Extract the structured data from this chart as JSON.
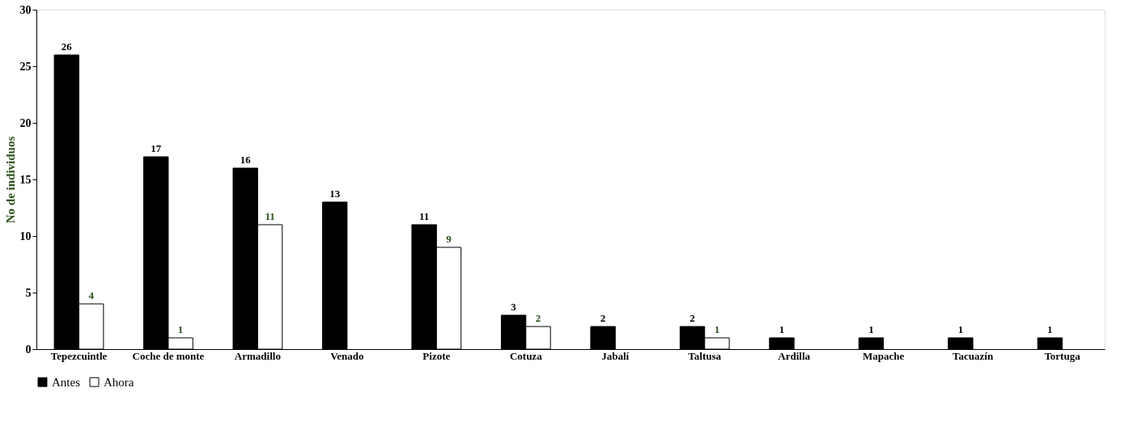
{
  "chart_data": {
    "type": "bar",
    "ylabel": "No de individuos",
    "categories": [
      "Tepezcuintle",
      "Coche de monte",
      "Armadillo",
      "Venado",
      "Pizote",
      "Cotuza",
      "Jabalí",
      "Taltusa",
      "Ardilla",
      "Mapache",
      "Tacuazín",
      "Tortuga"
    ],
    "series": [
      {
        "name": "Antes",
        "color": "#000000",
        "values": [
          26,
          17,
          16,
          13,
          11,
          3,
          2,
          2,
          1,
          1,
          1,
          1
        ]
      },
      {
        "name": "Ahora",
        "color": "#ffffff",
        "values": [
          4,
          1,
          11,
          null,
          9,
          2,
          null,
          1,
          null,
          null,
          null,
          null
        ]
      }
    ],
    "ylim": [
      0,
      30
    ],
    "yticks": [
      0,
      5,
      10,
      15,
      20,
      25,
      30
    ],
    "grid": false,
    "legend": "bottom",
    "data_labels": true
  }
}
